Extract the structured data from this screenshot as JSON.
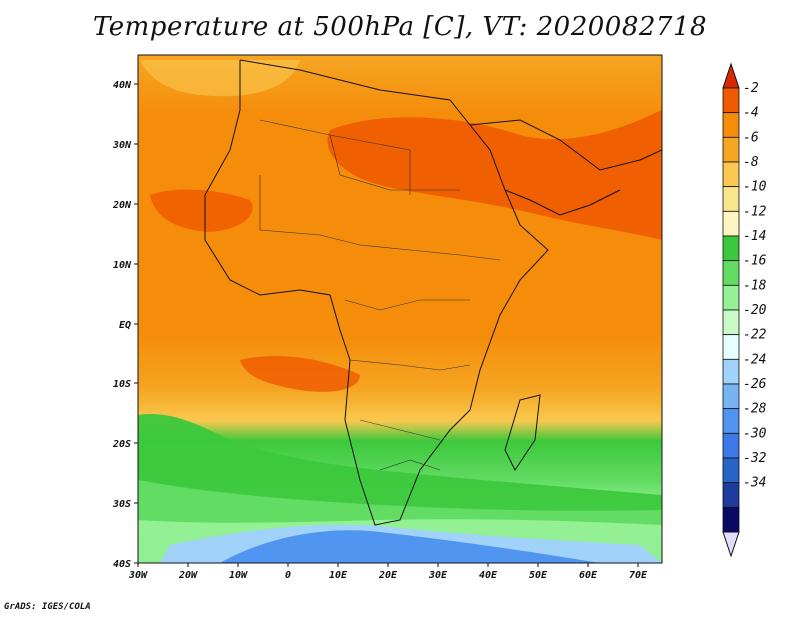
{
  "title": "Temperature at 500hPa [C], VT: 2020082718",
  "credit": "GrADS: IGES/COLA",
  "map": {
    "lon_range": [
      -30,
      75
    ],
    "lat_range": [
      -40,
      45
    ],
    "lat_ticks": [
      "40N",
      "30N",
      "20N",
      "10N",
      "EQ",
      "10S",
      "20S",
      "30S",
      "40S"
    ],
    "lon_ticks": [
      "30W",
      "20W",
      "10W",
      "0",
      "10E",
      "20E",
      "30E",
      "40E",
      "50E",
      "60E",
      "70E"
    ]
  },
  "colorbar": {
    "labels": [
      "-2",
      "-4",
      "-6",
      "-8",
      "-10",
      "-12",
      "-14",
      "-16",
      "-18",
      "-20",
      "-22",
      "-24",
      "-26",
      "-28",
      "-30",
      "-32",
      "-34"
    ],
    "colors": [
      "#dc2800",
      "#f05a00",
      "#f58c0a",
      "#f5a623",
      "#fac850",
      "#fae68c",
      "#fff5c3",
      "#3cc83c",
      "#64dc64",
      "#96f096",
      "#c8fac8",
      "#e6ffff",
      "#a0d2fa",
      "#78b4f0",
      "#5096f0",
      "#3c78e6",
      "#2864c8",
      "#1e3ca0",
      "#0a0a64",
      "#e1dcfa"
    ],
    "top_arrow_color": "#dc2800",
    "bottom_arrow_color": "#e1dcfa"
  }
}
